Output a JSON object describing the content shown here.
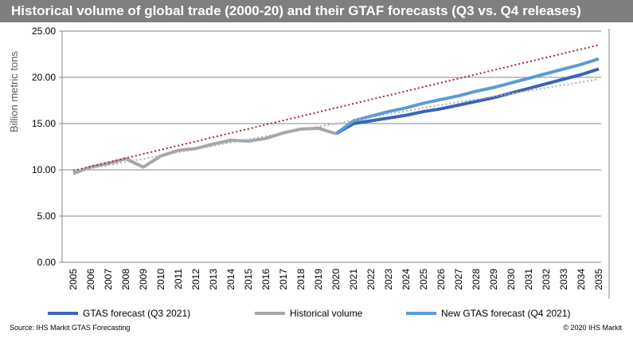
{
  "chart_data": {
    "type": "line",
    "title": "Historical volume of global trade (2000-20) and their GTAF forecasts  (Q3 vs. Q4 releases)",
    "ylabel": "Billion metric tons",
    "xlabel": "",
    "ylim": [
      0,
      25
    ],
    "yticks": [
      "0.00",
      "5.00",
      "10.00",
      "15.00",
      "20.00",
      "25.00"
    ],
    "x": [
      2005,
      2006,
      2007,
      2008,
      2009,
      2010,
      2011,
      2012,
      2013,
      2014,
      2015,
      2016,
      2017,
      2018,
      2019,
      2020,
      2021,
      2022,
      2023,
      2024,
      2025,
      2026,
      2027,
      2028,
      2029,
      2030,
      2031,
      2032,
      2033,
      2034,
      2035
    ],
    "grid": true,
    "legend_placement": "bottom",
    "series": [
      {
        "name": "GTAS forecast (Q3 2021)",
        "color": "#3a64b8",
        "x": [
          2020,
          2021,
          2022,
          2023,
          2024,
          2025,
          2026,
          2027,
          2028,
          2029,
          2030,
          2031,
          2032,
          2033,
          2034,
          2035
        ],
        "values": [
          13.9,
          15.0,
          15.3,
          15.6,
          15.9,
          16.3,
          16.6,
          17.0,
          17.4,
          17.8,
          18.3,
          18.8,
          19.3,
          19.8,
          20.3,
          20.9
        ]
      },
      {
        "name": "Historical volume",
        "color": "#a6a6a6",
        "x": [
          2005,
          2006,
          2007,
          2008,
          2009,
          2010,
          2011,
          2012,
          2013,
          2014,
          2015,
          2016,
          2017,
          2018,
          2019,
          2020
        ],
        "values": [
          9.6,
          10.3,
          10.7,
          11.2,
          10.3,
          11.5,
          12.1,
          12.3,
          12.8,
          13.2,
          13.1,
          13.4,
          14.0,
          14.4,
          14.5,
          13.9
        ]
      },
      {
        "name": "New GTAS forecast (Q4 2021)",
        "color": "#5b9bd5",
        "x": [
          2020,
          2021,
          2022,
          2023,
          2024,
          2025,
          2026,
          2027,
          2028,
          2029,
          2030,
          2031,
          2032,
          2033,
          2034,
          2035
        ],
        "values": [
          13.9,
          15.3,
          15.8,
          16.3,
          16.7,
          17.2,
          17.6,
          18.0,
          18.5,
          18.9,
          19.4,
          19.9,
          20.4,
          20.9,
          21.4,
          22.0
        ]
      }
    ],
    "trendlines": [
      {
        "color": "#a0282d",
        "style": "dotted",
        "x": [
          2005,
          2035
        ],
        "values": [
          9.9,
          23.5
        ]
      },
      {
        "color": "#b0b0b0",
        "style": "dotted",
        "x": [
          2005,
          2015,
          2025,
          2035
        ],
        "values": [
          9.8,
          13.3,
          16.7,
          19.8
        ]
      }
    ]
  },
  "footer": {
    "source": "Source: IHS Markit GTAS Forecasting",
    "copyright": "© 2020 IHS Markit"
  }
}
